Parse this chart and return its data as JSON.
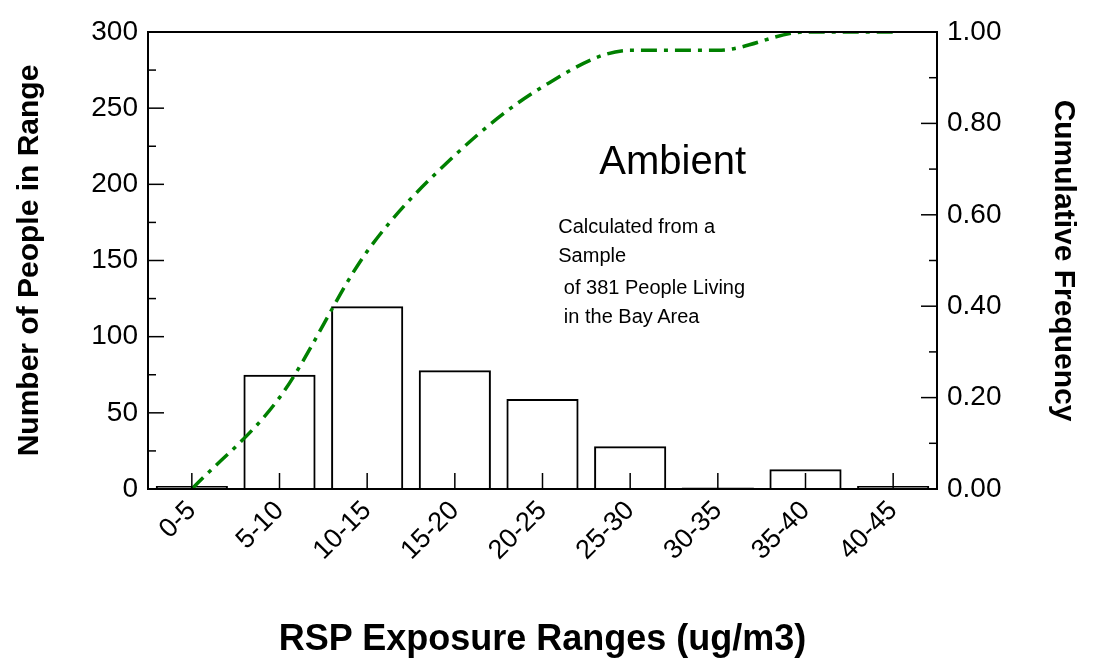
{
  "chart_data": {
    "type": "bar",
    "xlabel": "RSP Exposure Ranges (ug/m3)",
    "ylabel": "Number of People in Range",
    "y2label": "Cumulative Frequency",
    "categories": [
      "0-5",
      "5-10",
      "10-15",
      "15-20",
      "20-25",
      "25-30",
      "30-35",
      "35-40",
      "40-45"
    ],
    "series": [
      {
        "color": "#000000",
        "values": [
          2,
          75,
          120,
          78,
          59,
          28,
          1,
          13,
          2
        ]
      },
      {
        "type": "line",
        "axis": "y2",
        "color": "#008000",
        "line_style": "dashed",
        "marker": "none",
        "values": [
          0.0,
          0.2,
          0.52,
          0.73,
          0.88,
          0.96,
          0.96,
          1.0,
          1.0
        ]
      }
    ],
    "ylim": [
      0,
      300
    ],
    "yticks": [
      0,
      {
        "value": 25,
        "label": null
      },
      50,
      {
        "value": 75,
        "label": null
      },
      100,
      {
        "value": 125,
        "label": null
      },
      150,
      {
        "value": 175,
        "label": null
      },
      200,
      {
        "value": 225,
        "label": null
      },
      250,
      {
        "value": 275,
        "label": null
      },
      300
    ],
    "y2lim": [
      0,
      1
    ],
    "y2ticks": [
      {
        "value": 0,
        "label": "0.00"
      },
      {
        "value": 0.1,
        "label": null
      },
      {
        "value": 0.2,
        "label": "0.20"
      },
      {
        "value": 0.3,
        "label": null
      },
      {
        "value": 0.4,
        "label": "0.40"
      },
      {
        "value": 0.5,
        "label": null
      },
      {
        "value": 0.6,
        "label": "0.60"
      },
      {
        "value": 0.7,
        "label": null
      },
      {
        "value": 0.8,
        "label": "0.80"
      },
      {
        "value": 0.9,
        "label": null
      },
      {
        "value": 1,
        "label": "1.00"
      }
    ],
    "annotations": [
      "Ambient",
      "Calculated from a\nSample\n of 381 People Living\n in the Bay Area"
    ],
    "grid": false,
    "legend": false
  }
}
